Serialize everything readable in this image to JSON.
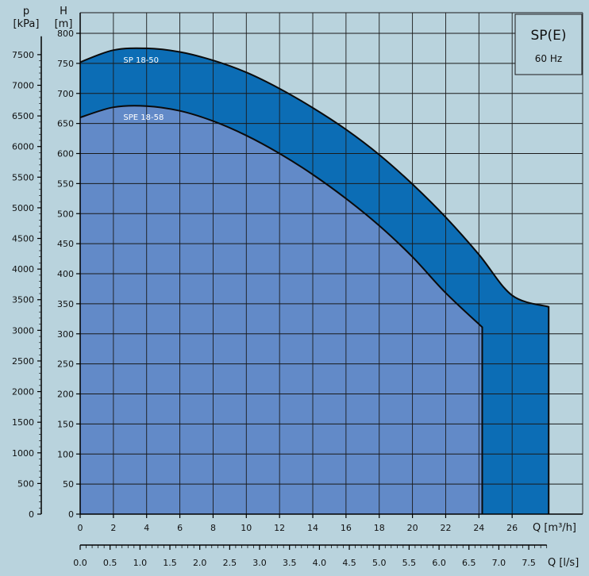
{
  "chart_data": {
    "type": "area",
    "legend": {
      "title": "SP(E)",
      "subtitle": "60 Hz",
      "placement": "top-right"
    },
    "y_axis_pressure": {
      "unit": "p",
      "bracket": "[kPa]",
      "range": [
        0,
        7800
      ],
      "ticks": [
        0,
        500,
        1000,
        1500,
        2000,
        2500,
        3000,
        3500,
        4000,
        4500,
        5000,
        5500,
        6000,
        6500,
        7000,
        7500
      ]
    },
    "y_axis_head": {
      "unit": "H",
      "bracket": "[m]",
      "range": [
        0,
        800
      ],
      "ticks": [
        0,
        50,
        100,
        150,
        200,
        250,
        300,
        350,
        400,
        450,
        500,
        550,
        600,
        650,
        700,
        750,
        800
      ]
    },
    "x_axis_flow_m3h": {
      "unit": "Q",
      "bracket": "[m³/h]",
      "range": [
        0,
        28
      ],
      "ticks": [
        0,
        2,
        4,
        6,
        8,
        10,
        12,
        14,
        16,
        18,
        20,
        22,
        24,
        26
      ]
    },
    "x_axis_flow_ls": {
      "unit": "Q",
      "bracket": "[l/s]",
      "range": [
        0,
        7.8
      ],
      "ticks": [
        "0.0",
        "0.5",
        "1.0",
        "1.5",
        "2.0",
        "2.5",
        "3.0",
        "3.5",
        "4.0",
        "4.5",
        "5.0",
        "5.5",
        "6.0",
        "6.5",
        "7.0",
        "7.5"
      ]
    },
    "grid": true,
    "series": [
      {
        "name": "SP 18-50",
        "color": "#0c6db5",
        "x": [
          0,
          2,
          4,
          6,
          8,
          10,
          12,
          14,
          16,
          18,
          20,
          22,
          24,
          26,
          28.2,
          28.2
        ],
        "y": [
          752,
          772,
          775,
          769,
          755,
          735,
          708,
          676,
          640,
          598,
          549,
          494,
          432,
          364,
          345,
          0
        ]
      },
      {
        "name": "SPE 18-58",
        "color": "#628ac8",
        "x": [
          0,
          2,
          4,
          6,
          8,
          10,
          12,
          14,
          16,
          18,
          20,
          22,
          24.2,
          24.2
        ],
        "y": [
          660,
          677,
          679,
          671,
          654,
          630,
          600,
          565,
          525,
          480,
          428,
          368,
          311,
          0
        ]
      }
    ]
  }
}
